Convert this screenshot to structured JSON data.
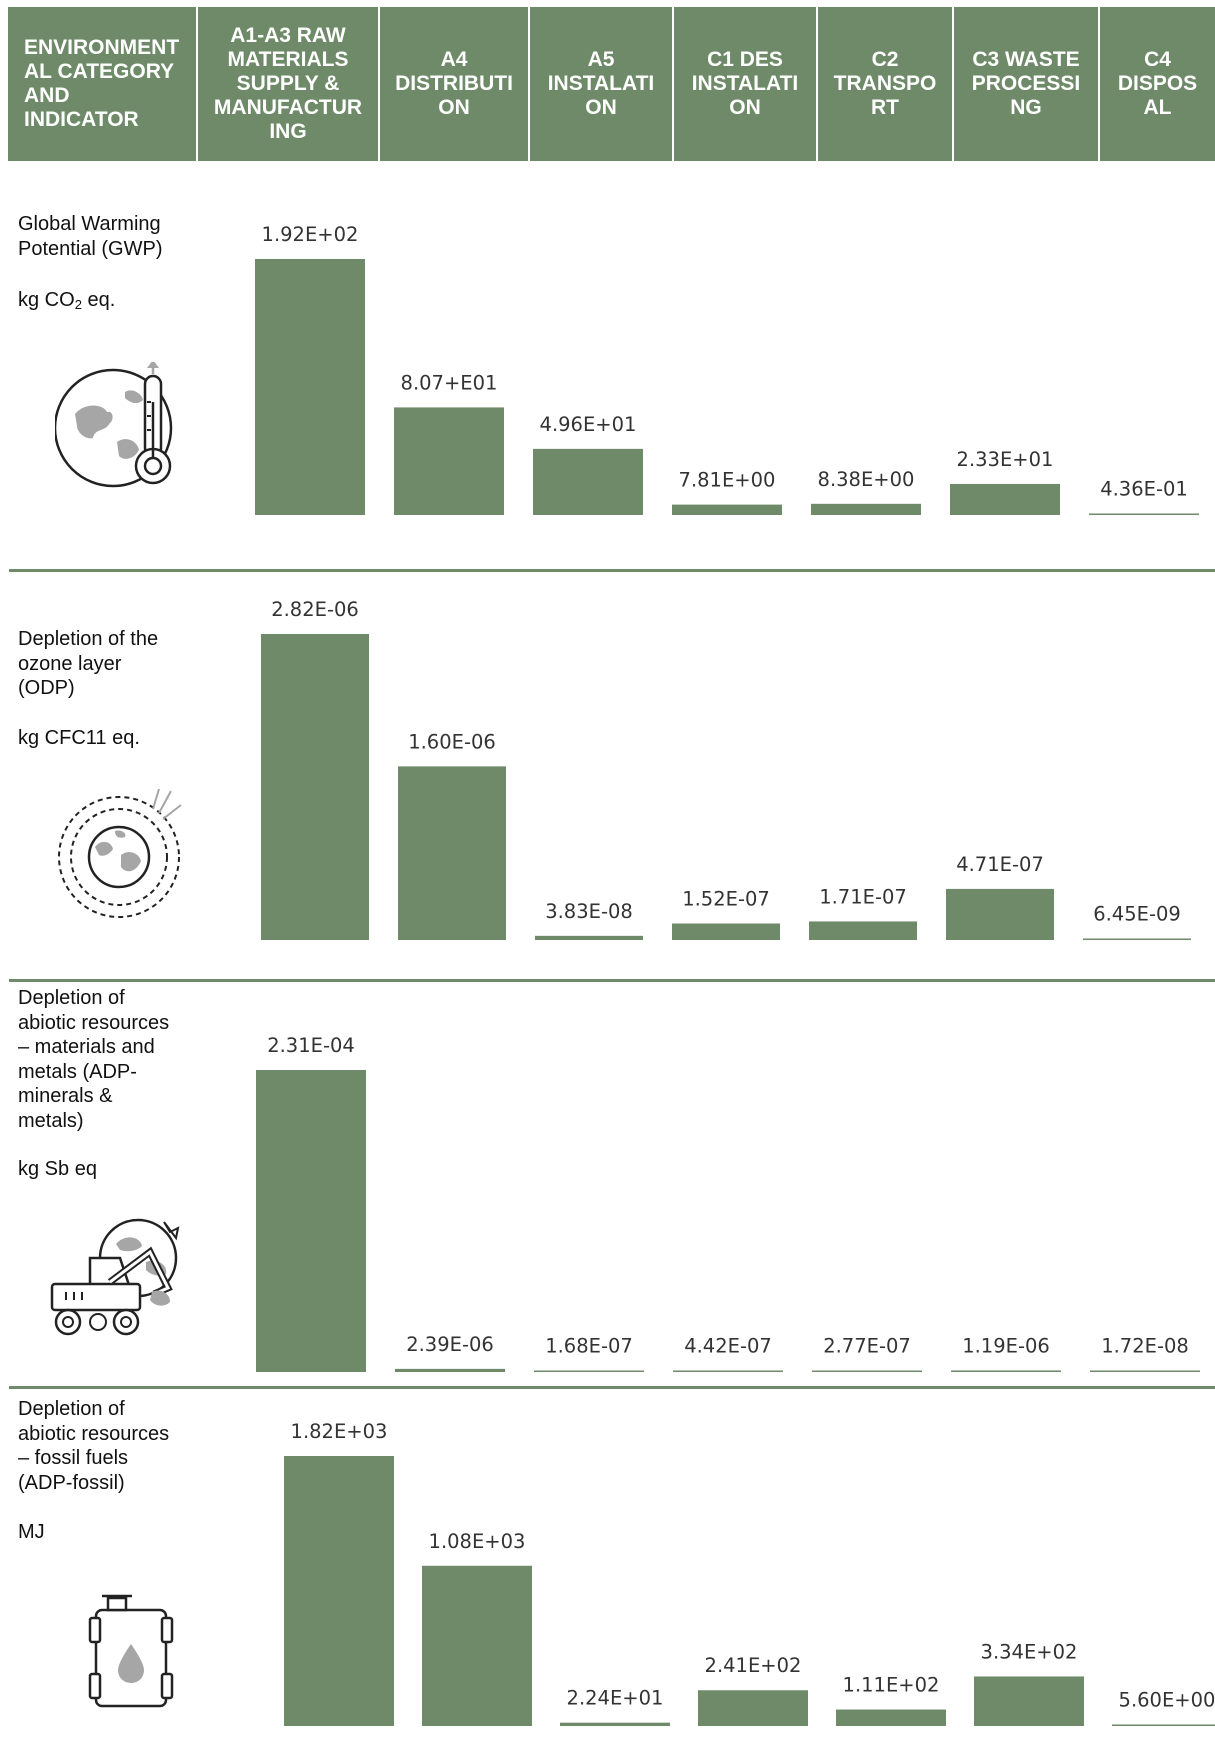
{
  "header": {
    "columns": [
      "ENVIRONMENT\nAL CATEGORY\nAND\nINDICATOR",
      "A1-A3 RAW\nMATERIALS\nSUPPLY &\nMANUFACTUR\nING",
      "A4\nDISTRIBUTI\nON",
      "A5\nINSTALATI\nON",
      "C1 DES\nINSTALATI\nON",
      "C2\nTRANSPO\nRT",
      "C3 WASTE\nPROCESSI\nNG",
      "C4\nDISPOS\nAL"
    ]
  },
  "colors": {
    "bar": "#6e8a68",
    "header_bg": "#6e8a68",
    "header_text": "#ffffff",
    "icon_gray": "#a6a6a6"
  },
  "indicators": [
    {
      "label": "Global Warming\nPotential (GWP)",
      "unit_main": "kg CO",
      "unit_sub": "2",
      "unit_tail": " eq.",
      "icon": "globe-thermometer-icon"
    },
    {
      "label": "Depletion of the\nozone layer\n(ODP)",
      "unit_main": "kg CFC11 eq.",
      "unit_sub": "",
      "unit_tail": "",
      "icon": "ozone-layer-globe-icon"
    },
    {
      "label": "Depletion of\nabiotic resources\n– materials and\nmetals (ADP-\nminerals &\nmetals)",
      "unit_main": "kg Sb eq",
      "unit_sub": "",
      "unit_tail": "",
      "icon": "mining-excavator-globe-icon"
    },
    {
      "label": "Depletion of\nabiotic resources\n– fossil fuels\n(ADP-fossil)",
      "unit_main": "MJ",
      "unit_sub": "",
      "unit_tail": "",
      "icon": "oil-barrel-icon"
    }
  ],
  "chart_data": [
    {
      "type": "bar",
      "categories": [
        "A1-A3",
        "A4",
        "A5",
        "C1",
        "C2",
        "C3",
        "C4"
      ],
      "values": [
        192,
        80.7,
        49.6,
        7.81,
        8.38,
        23.3,
        0.436
      ],
      "labels": [
        "1.92E+02",
        "8.07+E01",
        "4.96E+01",
        "7.81E+00",
        "8.38E+00",
        "2.33E+01",
        "4.36E-01"
      ]
    },
    {
      "type": "bar",
      "categories": [
        "A1-A3",
        "A4",
        "A5",
        "C1",
        "C2",
        "C3",
        "C4"
      ],
      "values": [
        2.82e-06,
        1.6e-06,
        3.83e-08,
        1.52e-07,
        1.71e-07,
        4.71e-07,
        6.45e-09
      ],
      "labels": [
        "2.82E-06",
        "1.60E-06",
        "3.83E-08",
        "1.52E-07",
        "1.71E-07",
        "4.71E-07",
        "6.45E-09"
      ]
    },
    {
      "type": "bar",
      "categories": [
        "A1-A3",
        "A4",
        "A5",
        "C1",
        "C2",
        "C3",
        "C4"
      ],
      "values": [
        0.000231,
        2.39e-06,
        1.68e-07,
        4.42e-07,
        2.77e-07,
        1.19e-06,
        1.72e-08
      ],
      "labels": [
        "2.31E-04",
        "2.39E-06",
        "1.68E-07",
        "4.42E-07",
        "2.77E-07",
        "1.19E-06",
        "1.72E-08"
      ]
    },
    {
      "type": "bar",
      "categories": [
        "A1-A3",
        "A4",
        "A5",
        "C1",
        "C2",
        "C3",
        "C4"
      ],
      "values": [
        1820,
        1080,
        22.4,
        241,
        111,
        334,
        5.6
      ],
      "labels": [
        "1.82E+03",
        "1.08E+03",
        "2.24E+01",
        "2.41E+02",
        "1.11E+02",
        "3.34E+02",
        "5.60E+00"
      ]
    }
  ]
}
